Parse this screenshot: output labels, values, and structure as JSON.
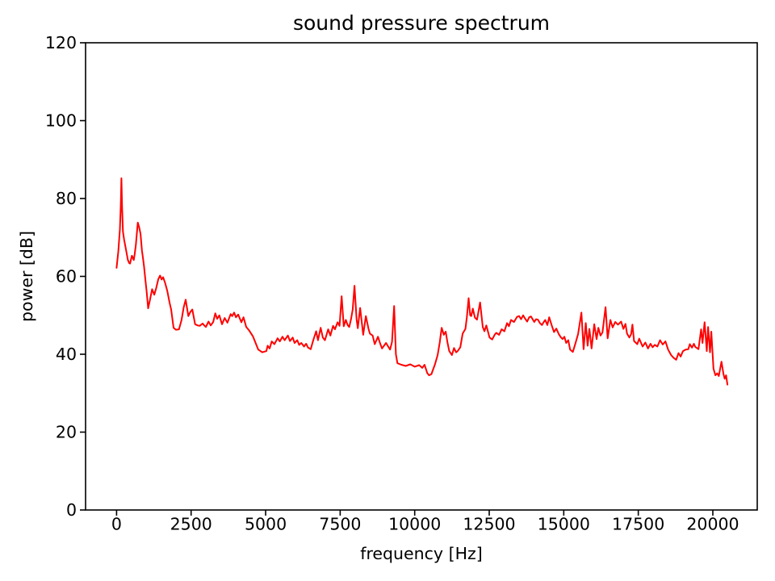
{
  "chart_data": {
    "type": "line",
    "title": "sound pressure spectrum",
    "xlabel": "frequency [Hz]",
    "ylabel": "power [dB]",
    "xlim": [
      -1040,
      21490
    ],
    "ylim": [
      0,
      120
    ],
    "xticks": [
      0,
      2500,
      5000,
      7500,
      10000,
      12500,
      15000,
      17500,
      20000
    ],
    "yticks": [
      0,
      20,
      40,
      60,
      80,
      100,
      120
    ],
    "grid": false,
    "legend": false,
    "line_color": "#ff0000",
    "axes_color": "#000000",
    "text_color": "#000000",
    "series": {
      "x": [
        0,
        60,
        110,
        140,
        162,
        185,
        215,
        253,
        300,
        340,
        379,
        425,
        451,
        480,
        514,
        545,
        577,
        610,
        648,
        680,
        713,
        758,
        804,
        850,
        885,
        920,
        966,
        1011,
        1060,
        1120,
        1190,
        1264,
        1330,
        1400,
        1460,
        1510,
        1560,
        1624,
        1700,
        1780,
        1830,
        1913,
        1990,
        2094,
        2180,
        2250,
        2319,
        2408,
        2470,
        2540,
        2634,
        2720,
        2790,
        2887,
        2940,
        2995,
        3085,
        3158,
        3240,
        3312,
        3375,
        3447,
        3536,
        3626,
        3718,
        3826,
        3880,
        3943,
        4005,
        4078,
        4186,
        4258,
        4348,
        4438,
        4573,
        4663,
        4753,
        4889,
        5023,
        5070,
        5133,
        5205,
        5295,
        5403,
        5475,
        5565,
        5638,
        5746,
        5816,
        5908,
        5971,
        6061,
        6126,
        6196,
        6287,
        6358,
        6423,
        6512,
        6585,
        6693,
        6755,
        6845,
        6918,
        6990,
        7098,
        7171,
        7262,
        7325,
        7415,
        7480,
        7550,
        7620,
        7690,
        7750,
        7804,
        7867,
        7920,
        7980,
        8050,
        8091,
        8170,
        8272,
        8362,
        8450,
        8497,
        8590,
        8660,
        8768,
        8830,
        8903,
        9038,
        9110,
        9174,
        9240,
        9310,
        9370,
        9420,
        9550,
        9700,
        9850,
        10000,
        10150,
        10255,
        10330,
        10420,
        10482,
        10560,
        10680,
        10770,
        10840,
        10905,
        10978,
        11040,
        11100,
        11158,
        11248,
        11320,
        11390,
        11450,
        11530,
        11608,
        11700,
        11750,
        11808,
        11860,
        11897,
        11951,
        12020,
        12090,
        12195,
        12284,
        12340,
        12403,
        12511,
        12601,
        12680,
        12736,
        12830,
        12917,
        13010,
        13097,
        13160,
        13232,
        13330,
        13430,
        13502,
        13570,
        13637,
        13700,
        13772,
        13840,
        13900,
        14010,
        14070,
        14133,
        14200,
        14268,
        14330,
        14380,
        14450,
        14512,
        14600,
        14674,
        14750,
        14830,
        14900,
        14961,
        15020,
        15079,
        15150,
        15214,
        15304,
        15380,
        15480,
        15593,
        15664,
        15737,
        15800,
        15860,
        15934,
        16024,
        16100,
        16160,
        16230,
        16300,
        16403,
        16473,
        16565,
        16640,
        16727,
        16820,
        16925,
        17000,
        17070,
        17122,
        17200,
        17260,
        17303,
        17357,
        17465,
        17530,
        17646,
        17736,
        17825,
        17910,
        17980,
        18052,
        18140,
        18231,
        18320,
        18412,
        18500,
        18600,
        18682,
        18772,
        18850,
        18920,
        19000,
        19088,
        19178,
        19230,
        19302,
        19364,
        19410,
        19518,
        19608,
        19654,
        19724,
        19797,
        19842,
        19905,
        19950,
        20021,
        20086,
        20148,
        20202,
        20291,
        20356,
        20400,
        20445,
        20490
      ],
      "y": [
        62.2,
        66.5,
        72,
        78,
        85.2,
        78,
        71.5,
        69.5,
        67.5,
        65.8,
        64.2,
        63.4,
        63.3,
        64.2,
        65.3,
        64.8,
        64.2,
        65.8,
        68.1,
        71,
        73.8,
        72.6,
        70.9,
        66.7,
        64.7,
        62.6,
        59.1,
        56,
        51.8,
        54,
        56.7,
        55.3,
        57,
        59.3,
        60.2,
        59.2,
        59.8,
        58.4,
        56.3,
        53.2,
        51.5,
        46.8,
        46.3,
        46.4,
        48.8,
        52,
        54,
        49.8,
        50.8,
        51.5,
        47.7,
        47.4,
        47.3,
        47.9,
        47.4,
        47,
        48.4,
        47.4,
        48.3,
        50.5,
        49.1,
        50,
        47.7,
        49.3,
        48.1,
        50.3,
        49.8,
        50.7,
        49.5,
        50.2,
        48.2,
        49.5,
        47,
        46.2,
        44.6,
        42.9,
        41.2,
        40.5,
        40.8,
        42.2,
        41.5,
        43.3,
        42.6,
        44.1,
        43.3,
        44.5,
        43.6,
        44.8,
        43.4,
        44.3,
        42.9,
        43.6,
        42.4,
        42.9,
        42,
        42.7,
        41.7,
        41.3,
        43.3,
        45.9,
        43.6,
        46.8,
        44.3,
        43.6,
        46.4,
        44.8,
        47.3,
        46.4,
        48.2,
        47.3,
        54.9,
        47.2,
        48.8,
        47.5,
        47,
        49.1,
        51.5,
        57.6,
        49,
        46.7,
        51.9,
        45,
        49.8,
        46.5,
        45.3,
        44.8,
        42.6,
        44.5,
        43,
        41.5,
        42.9,
        42,
        41.2,
        43.2,
        52.4,
        40,
        37.7,
        37.3,
        37,
        37.4,
        36.8,
        37.2,
        36.5,
        37.3,
        35.2,
        34.6,
        34.9,
        37.4,
        39.8,
        43,
        46.8,
        45,
        45.8,
        43,
        40.8,
        39.8,
        41.6,
        40.5,
        40.9,
        41.8,
        45.3,
        46.5,
        49.5,
        54.4,
        50,
        49.8,
        51.7,
        49.4,
        48.9,
        53.3,
        47,
        45.9,
        47.4,
        44.3,
        43.8,
        45,
        45.5,
        45,
        46.4,
        45.9,
        48,
        47.2,
        48.8,
        48.3,
        49.6,
        49.8,
        49,
        50,
        49.2,
        48.4,
        49.5,
        49.7,
        48.3,
        49,
        48.9,
        48,
        47.5,
        48.3,
        48.8,
        47.5,
        49.5,
        47.3,
        45.7,
        46.6,
        45.2,
        44.4,
        43.9,
        44.5,
        42.9,
        43.6,
        41.2,
        40.6,
        42.5,
        45.2,
        50.7,
        41.3,
        48,
        42.2,
        46.5,
        41.5,
        47.7,
        43.9,
        46.8,
        44.8,
        45.6,
        52.1,
        44.1,
        48.8,
        46.9,
        48.3,
        47.6,
        48.4,
        46.5,
        47.8,
        45.3,
        44.3,
        45.2,
        47.6,
        43.4,
        42.6,
        44,
        42,
        43,
        41.5,
        42.7,
        41.8,
        42.4,
        42,
        43.6,
        42.5,
        43.3,
        41.2,
        39.8,
        39.1,
        38.6,
        40.3,
        39.4,
        40.8,
        41.2,
        41.3,
        42.6,
        41.7,
        42.7,
        41.9,
        41.3,
        46.4,
        42.9,
        48.2,
        40.8,
        47,
        40.5,
        45.8,
        36.3,
        34.6,
        35.1,
        34.4,
        38.1,
        35,
        33.7,
        34.6,
        32.2
      ]
    }
  }
}
